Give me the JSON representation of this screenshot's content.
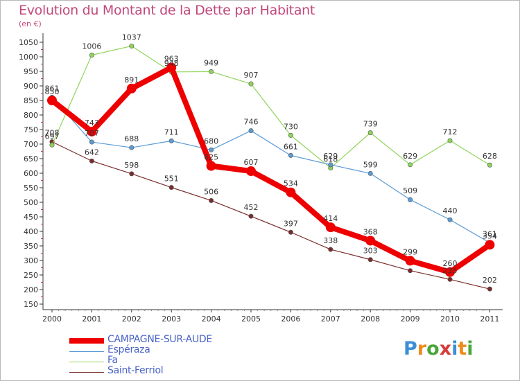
{
  "header": {
    "title": "Evolution du Montant de la Dette par Habitant",
    "unit": "(en €)"
  },
  "logo": {
    "text": "Proxiti",
    "colors": [
      "#3a8fd6",
      "#f08a1c",
      "#4aa63a",
      "#d63a3a",
      "#3a8fd6",
      "#f08a1c",
      "#4aa63a"
    ]
  },
  "chart_data": {
    "type": "line",
    "title": "Evolution du Montant de la Dette par Habitant",
    "subtitle": "(en €)",
    "xlabel": "",
    "ylabel": "",
    "x": [
      "2000",
      "2001",
      "2002",
      "2003",
      "2004",
      "2005",
      "2006",
      "2007",
      "2008",
      "2009",
      "2010",
      "2011"
    ],
    "yticks": [
      150,
      200,
      250,
      300,
      350,
      400,
      450,
      500,
      550,
      600,
      650,
      700,
      750,
      800,
      850,
      900,
      950,
      1000,
      1050
    ],
    "ylim": [
      150,
      1050
    ],
    "grid": false,
    "legend_position": "bottom-left",
    "series": [
      {
        "name": "CAMPAGNE-SUR-AUDE",
        "color": "#ee0000",
        "values": [
          850,
          743,
          891,
          963,
          625,
          607,
          534,
          414,
          368,
          299,
          260,
          354
        ],
        "labels": [
          "850",
          "743",
          "891",
          "963",
          "625",
          "607",
          "534",
          "414",
          "368",
          "299",
          "260",
          "354"
        ]
      },
      {
        "name": "Espéraza",
        "color": "#5b9bd5",
        "values": [
          861,
          707,
          688,
          711,
          680,
          746,
          661,
          629,
          599,
          509,
          440,
          361
        ],
        "labels": [
          "861",
          "707",
          "688",
          "711",
          "680",
          "746",
          "661",
          "629",
          "599",
          "509",
          "440",
          "361"
        ]
      },
      {
        "name": "Fa",
        "color": "#8fd45a",
        "values": [
          697,
          1006,
          1037,
          948,
          949,
          907,
          730,
          618,
          739,
          629,
          712,
          628
        ],
        "labels": [
          "697",
          "1006",
          "1037",
          "948",
          "949",
          "907",
          "730",
          "618",
          "739",
          "629",
          "712",
          "628"
        ]
      },
      {
        "name": "Saint-Ferriol",
        "color": "#7a2c2c",
        "values": [
          708,
          642,
          598,
          551,
          506,
          452,
          397,
          338,
          303,
          265,
          235,
          202
        ],
        "labels": [
          "708",
          "642",
          "598",
          "551",
          "506",
          "452",
          "397",
          "338",
          "303",
          "",
          "235",
          "202"
        ]
      }
    ]
  }
}
